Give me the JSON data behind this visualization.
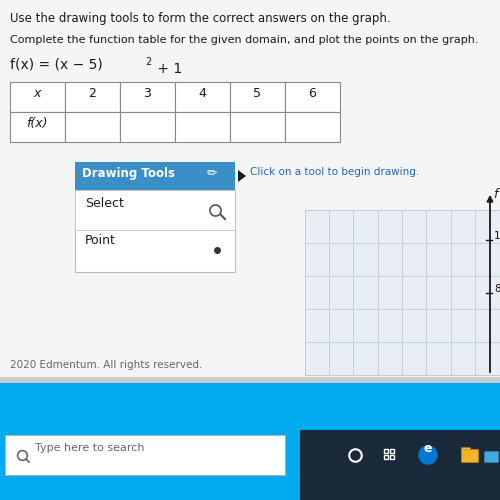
{
  "title_line1": "Use the drawing tools to form the correct answers on the graph.",
  "title_line2": "Complete the function table for the given domain, and plot the points on the graph.",
  "function_str": "f(ι) = (ι − 5)² + 1",
  "x_values": [
    2,
    3,
    4,
    5,
    6
  ],
  "table_header_x": "x",
  "table_header_fx": "f(x)",
  "drawing_tools_title": "Drawing Tools",
  "tool1": "Select",
  "tool2": "Point",
  "click_text": "Click on a tool to begin drawing.",
  "footer_text": "2020 Edmentum. All rights reserved.",
  "taskbar_text": "Type here to search",
  "bg_color": "#e8e8e8",
  "page_bg": "#f5f5f5",
  "white": "#ffffff",
  "blue_header": "#3a8fc7",
  "blue_taskbar": "#00aaee",
  "taskbar_dark": "#1a2a3a",
  "grid_color": "#c0cdd8",
  "graph_bg": "#e8eef4",
  "text_dark": "#1a1a1a",
  "text_gray": "#666666",
  "text_blue_link": "#2266bb",
  "separator": "#cccccc",
  "panel_border": "#bbbbbb"
}
